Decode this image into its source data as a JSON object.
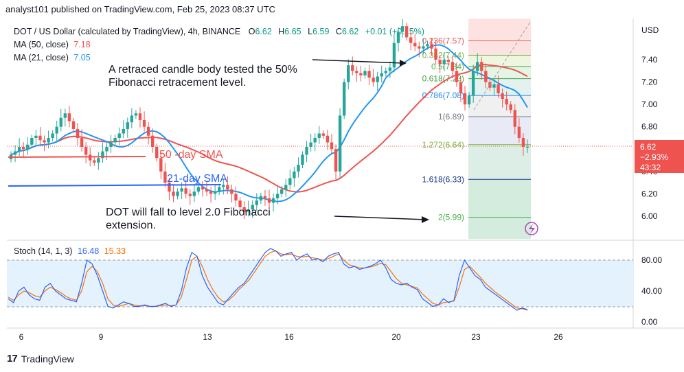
{
  "header": {
    "publisher": "analyst101 published on TradingView.com, Feb 25, 2023 08:37 UTC"
  },
  "symbol_line": {
    "title": "DOT / US Dollar (calculated by TradingView), 4h, BINANCE",
    "o_label": "O",
    "o_value": "6.62",
    "h_label": "H",
    "h_value": "6.65",
    "l_label": "L",
    "l_value": "6.59",
    "c_label": "C",
    "c_value": "6.62",
    "change": "+0.01 (+0.15%)"
  },
  "ma_legends": [
    {
      "label": "MA (50, close)",
      "value": "7.18",
      "color": "#ef5350"
    },
    {
      "label": "MA (21, close)",
      "value": "7.05",
      "color": "#2196f3"
    }
  ],
  "stoch_legend": {
    "label": "Stoch (14, 1, 3)",
    "k_value": "16.48",
    "d_value": "15.33",
    "k_color": "#2962ff",
    "d_color": "#ff6d00"
  },
  "price_axis": {
    "currency": "USD",
    "ticks": [
      "7.40",
      "7.20",
      "7.00",
      "6.80",
      "6.40",
      "6.20",
      "6.00"
    ],
    "last_price": "6.62",
    "last_change": "−2.93%",
    "countdown": "43:32"
  },
  "stoch_axis": {
    "ticks": [
      "80.00",
      "40.00",
      "0.00"
    ]
  },
  "time_axis": {
    "ticks": [
      "6",
      "9",
      "13",
      "16",
      "20",
      "23",
      "26"
    ]
  },
  "annotations": {
    "retrace": [
      "A retraced candle body tested the 50%",
      "Fibonacci retracement level."
    ],
    "sma50": "50 -day SMA",
    "sma21": "21-day SMA",
    "fall": [
      "DOT will fall to level 2.0 Fibonacci",
      "extension."
    ]
  },
  "fibonacci": [
    {
      "label": "0.236(7.57)",
      "price": 7.57,
      "color": "#ef5350"
    },
    {
      "label": "0.382(7.44)",
      "price": 7.44,
      "color": "#7cb342"
    },
    {
      "label": "0.5(7.34)",
      "price": 7.34,
      "color": "#4caf50"
    },
    {
      "label": "0.618(7.23)",
      "price": 7.23,
      "color": "#43a047"
    },
    {
      "label": "0.786(7.08)",
      "price": 7.08,
      "color": "#1e88e5"
    },
    {
      "label": "1(6.89)",
      "price": 6.89,
      "color": "#787b86"
    },
    {
      "label": "1.272(6.64)",
      "price": 6.64,
      "color": "#7cb342"
    },
    {
      "label": "1.618(6.33)",
      "price": 6.33,
      "color": "#1e3a8a"
    },
    {
      "label": "2(5.99)",
      "price": 5.99,
      "color": "#4caf50"
    }
  ],
  "colors": {
    "up": "#26a69a",
    "down": "#ef5350",
    "ma21": "#2196f3",
    "ma50": "#ef5350",
    "stoch_band": "#e3f2fd"
  },
  "footer": {
    "brand": "TradingView",
    "logo_mark": "17"
  },
  "chart_data": {
    "type": "candlestick",
    "timeframe": "4h",
    "x_ticks": [
      "6",
      "9",
      "13",
      "16",
      "20",
      "23",
      "26"
    ],
    "ylim": [
      5.85,
      7.75
    ],
    "close_series": {
      "name": "close",
      "values": [
        6.55,
        6.58,
        6.62,
        6.6,
        6.64,
        6.7,
        6.72,
        6.68,
        6.66,
        6.7,
        6.74,
        6.8,
        6.88,
        6.92,
        6.85,
        6.78,
        6.7,
        6.62,
        6.55,
        6.5,
        6.48,
        6.52,
        6.58,
        6.62,
        6.66,
        6.7,
        6.74,
        6.78,
        6.84,
        6.9,
        6.92,
        6.86,
        6.8,
        6.72,
        6.62,
        6.52,
        6.4,
        6.3,
        6.22,
        6.18,
        6.22,
        6.25,
        6.2,
        6.18,
        6.22,
        6.26,
        6.24,
        6.22,
        6.2,
        6.22,
        6.26,
        6.28,
        6.24,
        6.2,
        6.14,
        6.08,
        6.04,
        6.06,
        6.1,
        6.14,
        6.18,
        6.16,
        6.12,
        6.16,
        6.2,
        6.24,
        6.28,
        6.34,
        6.4,
        6.46,
        6.55,
        6.62,
        6.66,
        6.7,
        6.74,
        6.72,
        6.66,
        6.6,
        6.4,
        6.9,
        7.2,
        7.35,
        7.3,
        7.28,
        7.26,
        7.3,
        7.24,
        7.2,
        7.25,
        7.28,
        7.3,
        7.33,
        7.55,
        7.65,
        7.7,
        7.6,
        7.55,
        7.52,
        7.5,
        7.52,
        7.54,
        7.5,
        7.4,
        7.36,
        7.4,
        7.38,
        7.3,
        7.2,
        7.1,
        7.0,
        7.08,
        7.3,
        7.38,
        7.3,
        7.2,
        7.15,
        7.18,
        7.1,
        7.05,
        7.0,
        6.95,
        6.8,
        6.7,
        6.62,
        6.62
      ]
    },
    "ma21": {
      "name": "MA (21, close)",
      "last": 7.05
    },
    "ma50": {
      "name": "MA (50, close)",
      "last": 7.18
    },
    "stochastic": {
      "k": [
        30,
        25,
        40,
        45,
        35,
        30,
        28,
        45,
        50,
        40,
        35,
        30,
        28,
        26,
        50,
        80,
        75,
        60,
        40,
        20,
        18,
        22,
        26,
        24,
        20,
        20,
        22,
        20,
        20,
        22,
        24,
        20,
        22,
        40,
        70,
        90,
        85,
        60,
        45,
        35,
        25,
        22,
        30,
        38,
        45,
        50,
        60,
        70,
        80,
        90,
        95,
        92,
        85,
        88,
        90,
        80,
        85,
        88,
        80,
        82,
        78,
        85,
        88,
        90,
        75,
        70,
        72,
        68,
        70,
        72,
        75,
        80,
        70,
        55,
        50,
        48,
        50,
        45,
        42,
        30,
        25,
        20,
        22,
        30,
        25,
        28,
        60,
        80,
        70,
        60,
        55,
        45,
        40,
        35,
        30,
        25,
        20,
        15,
        18,
        16
      ],
      "d": [
        32,
        28,
        35,
        40,
        38,
        34,
        32,
        40,
        45,
        42,
        38,
        33,
        30,
        28,
        40,
        65,
        72,
        65,
        50,
        30,
        22,
        20,
        22,
        24,
        22,
        21,
        21,
        20,
        20,
        21,
        22,
        21,
        22,
        32,
        55,
        80,
        85,
        72,
        55,
        42,
        32,
        26,
        28,
        34,
        42,
        48,
        55,
        65,
        75,
        85,
        90,
        92,
        88,
        87,
        88,
        85,
        84,
        85,
        83,
        82,
        80,
        82,
        85,
        88,
        80,
        74,
        72,
        70,
        70,
        71,
        73,
        76,
        74,
        65,
        56,
        50,
        48,
        46,
        44,
        36,
        30,
        24,
        22,
        25,
        26,
        27,
        45,
        68,
        72,
        65,
        58,
        50,
        44,
        38,
        33,
        28,
        23,
        18,
        17,
        15
      ]
    }
  }
}
